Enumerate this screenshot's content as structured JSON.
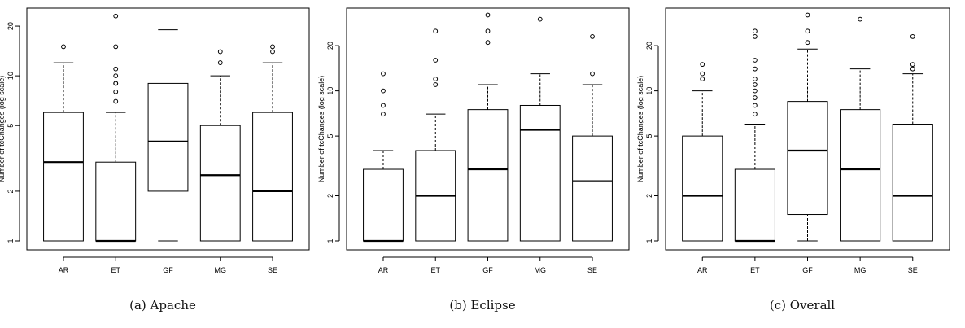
{
  "chart_data": [
    {
      "type": "boxplot",
      "caption": "(a) Apache",
      "ylabel": "Number of tcChanges (log scale)",
      "yscale": "log",
      "ylim": [
        1,
        24
      ],
      "yticks": [
        1,
        2,
        5,
        10,
        20
      ],
      "categories": [
        "AR",
        "ET",
        "GF",
        "MG",
        "SE"
      ],
      "boxes": [
        {
          "category": "AR",
          "min": 1,
          "q1": 1,
          "median": 3,
          "q3": 6,
          "max": 12,
          "outliers": [
            15
          ]
        },
        {
          "category": "ET",
          "min": 1,
          "q1": 1,
          "median": 1,
          "q3": 3,
          "max": 6,
          "outliers": [
            7,
            8,
            9,
            9,
            10,
            11,
            15,
            23
          ]
        },
        {
          "category": "GF",
          "min": 1,
          "q1": 2,
          "median": 4,
          "q3": 9,
          "max": 19,
          "outliers": []
        },
        {
          "category": "MG",
          "min": 1,
          "q1": 1,
          "median": 2.5,
          "q3": 5,
          "max": 10,
          "outliers": [
            12,
            14
          ]
        },
        {
          "category": "SE",
          "min": 1,
          "q1": 1,
          "median": 2,
          "q3": 6,
          "max": 12,
          "outliers": [
            14,
            15
          ]
        }
      ]
    },
    {
      "type": "boxplot",
      "caption": "(b) Eclipse",
      "ylabel": "Number of tcChanges (log scale)",
      "yscale": "log",
      "ylim": [
        1,
        33
      ],
      "yticks": [
        1,
        2,
        5,
        10,
        20
      ],
      "categories": [
        "AR",
        "ET",
        "GF",
        "MG",
        "SE"
      ],
      "boxes": [
        {
          "category": "AR",
          "min": 1,
          "q1": 1,
          "median": 1,
          "q3": 3,
          "max": 4,
          "outliers": [
            7,
            8,
            10,
            13
          ]
        },
        {
          "category": "ET",
          "min": 1,
          "q1": 1,
          "median": 2,
          "q3": 4,
          "max": 7,
          "outliers": [
            11,
            12,
            16,
            25
          ]
        },
        {
          "category": "GF",
          "min": 1,
          "q1": 1,
          "median": 3,
          "q3": 7.5,
          "max": 11,
          "outliers": [
            21,
            25,
            32
          ]
        },
        {
          "category": "MG",
          "min": 1,
          "q1": 1,
          "median": 5.5,
          "q3": 8,
          "max": 13,
          "outliers": [
            30
          ]
        },
        {
          "category": "SE",
          "min": 1,
          "q1": 1,
          "median": 2.5,
          "q3": 5,
          "max": 11,
          "outliers": [
            13,
            23
          ]
        }
      ]
    },
    {
      "type": "boxplot",
      "caption": "(c) Overall",
      "ylabel": "Number of tcChanges (log scale)",
      "yscale": "log",
      "ylim": [
        1,
        33
      ],
      "yticks": [
        1,
        2,
        5,
        10,
        20
      ],
      "categories": [
        "AR",
        "ET",
        "GF",
        "MG",
        "SE"
      ],
      "boxes": [
        {
          "category": "AR",
          "min": 1,
          "q1": 1,
          "median": 2,
          "q3": 5,
          "max": 10,
          "outliers": [
            12,
            13,
            15
          ]
        },
        {
          "category": "ET",
          "min": 1,
          "q1": 1,
          "median": 1,
          "q3": 3,
          "max": 6,
          "outliers": [
            7,
            8,
            9,
            10,
            11,
            12,
            14,
            16,
            23,
            25
          ]
        },
        {
          "category": "GF",
          "min": 1,
          "q1": 1.5,
          "median": 4,
          "q3": 8.5,
          "max": 19,
          "outliers": [
            21,
            25,
            32
          ]
        },
        {
          "category": "MG",
          "min": 1,
          "q1": 1,
          "median": 3,
          "q3": 7.5,
          "max": 14,
          "outliers": [
            30
          ]
        },
        {
          "category": "SE",
          "min": 1,
          "q1": 1,
          "median": 2,
          "q3": 6,
          "max": 13,
          "outliers": [
            14,
            15,
            23
          ]
        }
      ]
    }
  ]
}
